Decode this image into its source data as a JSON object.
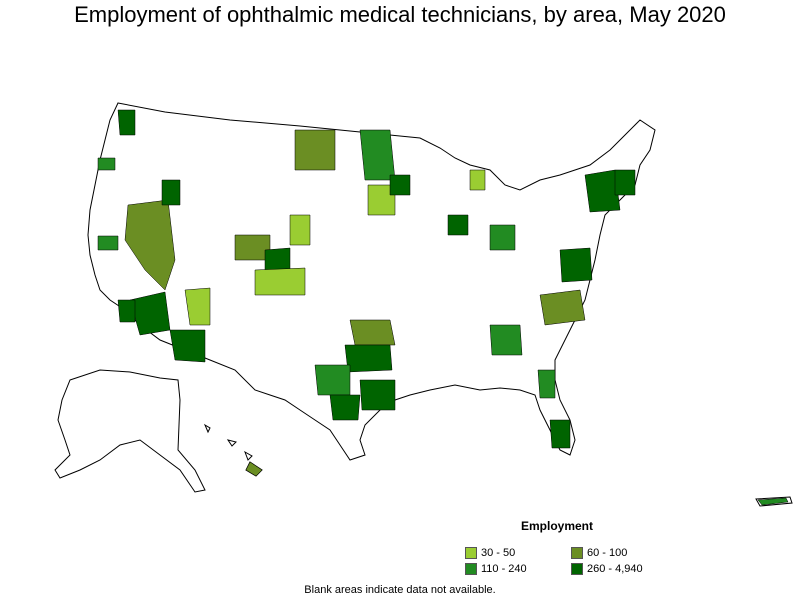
{
  "title": "Employment of ophthalmic medical technicians, by area, May 2020",
  "legend": {
    "title": "Employment",
    "items": [
      {
        "label": "30 - 50",
        "color": "#9acd32"
      },
      {
        "label": "60 - 100",
        "color": "#6b8e23"
      },
      {
        "label": "110 - 240",
        "color": "#228b22"
      },
      {
        "label": "260 - 4,940",
        "color": "#006400"
      }
    ]
  },
  "footnote": "Blank areas indicate data not available.",
  "colors": {
    "background": "#ffffff",
    "outline": "#000000",
    "no_data": "#ffffff"
  }
}
